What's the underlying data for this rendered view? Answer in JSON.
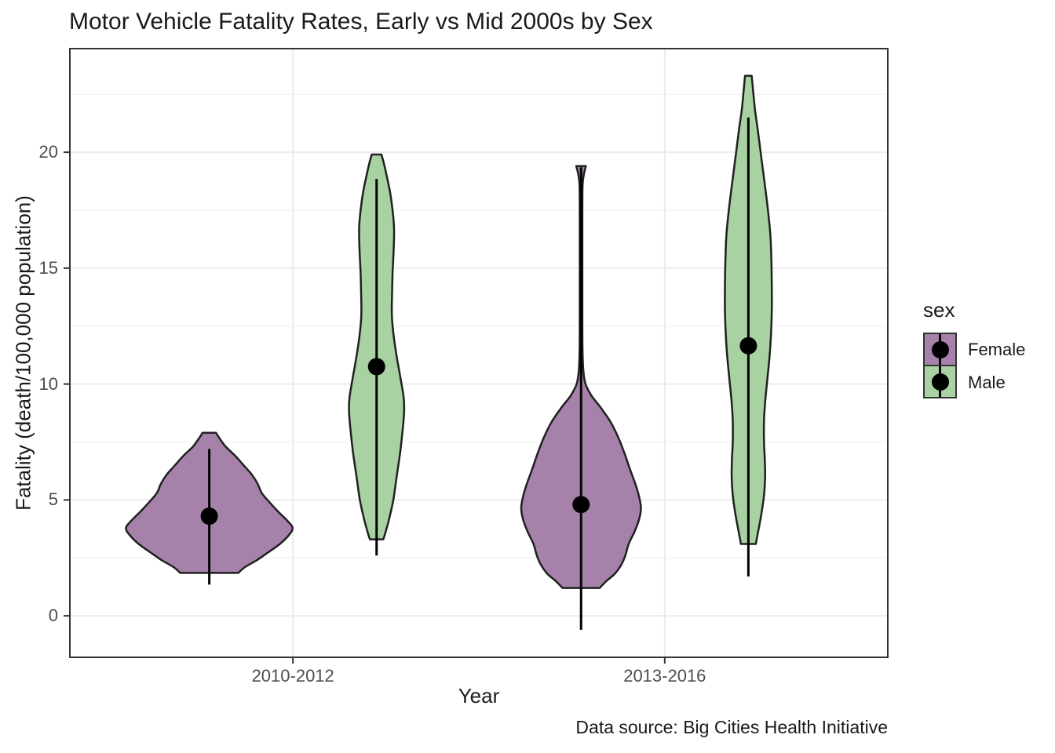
{
  "chart_data": {
    "type": "violin",
    "title": "Motor Vehicle Fatality Rates, Early vs Mid 2000s by Sex",
    "xlabel": "Year",
    "ylabel": "Fatality (death/100,000 population)",
    "caption": "Data source: Big Cities Health Initiative",
    "categories": [
      {
        "label": "2010-2012",
        "position": 1
      },
      {
        "label": "2013-2016",
        "position": 2
      }
    ],
    "y_ticks": [
      0,
      5,
      10,
      15,
      20
    ],
    "y_minor_ticks": [
      2.5,
      7.5,
      12.5,
      17.5,
      22.5
    ],
    "ylim": [
      -1.79,
      24.47
    ],
    "dodge": 0.225,
    "legend": {
      "title": "sex",
      "position": "right",
      "entries": [
        {
          "label": "Female",
          "fill": "#A682AB"
        },
        {
          "label": "Male",
          "fill": "#A9D2A2"
        }
      ]
    },
    "style": {
      "female_fill": "#A682AB",
      "male_fill": "#A9D2A2",
      "outline": "#202020",
      "point_color": "#000000",
      "range_line_color": "#000000",
      "grid_major": "#EBEBEB",
      "grid_minor": "#F0F0F0",
      "panel_border": "#333333",
      "tick_color": "#333333",
      "text_color": "#1A1A1A",
      "axis_text_color": "#4D4D4D"
    },
    "series": [
      {
        "name": "female-2010-2012",
        "sex": "Female",
        "category": "2010-2012",
        "category_position": 1,
        "side": -1,
        "fill": "#A682AB",
        "median_point": 4.3,
        "range": [
          1.35,
          7.2
        ],
        "profile": [
          [
            7.9,
            0.018
          ],
          [
            7.65,
            0.028
          ],
          [
            7.3,
            0.044
          ],
          [
            6.9,
            0.07
          ],
          [
            6.5,
            0.092
          ],
          [
            6.1,
            0.114
          ],
          [
            5.7,
            0.13
          ],
          [
            5.3,
            0.141
          ],
          [
            4.9,
            0.162
          ],
          [
            4.5,
            0.185
          ],
          [
            4.1,
            0.21
          ],
          [
            3.8,
            0.224
          ],
          [
            3.5,
            0.215
          ],
          [
            3.1,
            0.19
          ],
          [
            2.7,
            0.155
          ],
          [
            2.4,
            0.128
          ],
          [
            2.1,
            0.096
          ],
          [
            1.85,
            0.078
          ]
        ]
      },
      {
        "name": "male-2010-2012",
        "sex": "Male",
        "category": "2010-2012",
        "category_position": 1,
        "side": 1,
        "fill": "#A9D2A2",
        "median_point": 10.75,
        "range": [
          2.6,
          18.85
        ],
        "profile": [
          [
            19.9,
            0.013
          ],
          [
            19.5,
            0.02
          ],
          [
            19.0,
            0.027
          ],
          [
            18.3,
            0.036
          ],
          [
            17.5,
            0.043
          ],
          [
            16.7,
            0.047
          ],
          [
            15.8,
            0.046
          ],
          [
            14.8,
            0.043
          ],
          [
            13.8,
            0.0415
          ],
          [
            13.0,
            0.041
          ],
          [
            12.2,
            0.045
          ],
          [
            11.2,
            0.054
          ],
          [
            10.2,
            0.065
          ],
          [
            9.4,
            0.073
          ],
          [
            8.8,
            0.074
          ],
          [
            8.0,
            0.07
          ],
          [
            7.0,
            0.063
          ],
          [
            6.0,
            0.054
          ],
          [
            5.0,
            0.045
          ],
          [
            4.2,
            0.034
          ],
          [
            3.6,
            0.024
          ],
          [
            3.3,
            0.018
          ]
        ]
      },
      {
        "name": "female-2013-2016",
        "sex": "Female",
        "category": "2013-2016",
        "category_position": 2,
        "side": -1,
        "fill": "#A682AB",
        "median_point": 4.8,
        "range": [
          -0.6,
          19.35
        ],
        "profile": [
          [
            19.4,
            0.013
          ],
          [
            19.0,
            0.007
          ],
          [
            18.5,
            0.004
          ],
          [
            17.0,
            0.0035
          ],
          [
            15.0,
            0.0035
          ],
          [
            13.0,
            0.0035
          ],
          [
            11.5,
            0.004
          ],
          [
            10.6,
            0.006
          ],
          [
            10.0,
            0.012
          ],
          [
            9.5,
            0.028
          ],
          [
            9.0,
            0.052
          ],
          [
            8.4,
            0.078
          ],
          [
            7.7,
            0.1
          ],
          [
            7.0,
            0.117
          ],
          [
            6.3,
            0.132
          ],
          [
            5.6,
            0.148
          ],
          [
            5.0,
            0.158
          ],
          [
            4.6,
            0.161
          ],
          [
            4.1,
            0.155
          ],
          [
            3.6,
            0.143
          ],
          [
            3.1,
            0.128
          ],
          [
            2.6,
            0.119
          ],
          [
            2.2,
            0.108
          ],
          [
            1.8,
            0.09
          ],
          [
            1.5,
            0.068
          ],
          [
            1.2,
            0.05
          ]
        ]
      },
      {
        "name": "male-2013-2016",
        "sex": "Male",
        "category": "2013-2016",
        "category_position": 2,
        "side": 1,
        "fill": "#A9D2A2",
        "median_point": 11.65,
        "range": [
          1.7,
          21.5
        ],
        "profile": [
          [
            23.3,
            0.009
          ],
          [
            22.6,
            0.013
          ],
          [
            21.8,
            0.018
          ],
          [
            21.0,
            0.025
          ],
          [
            20.0,
            0.033
          ],
          [
            19.0,
            0.041
          ],
          [
            18.0,
            0.049
          ],
          [
            17.0,
            0.056
          ],
          [
            16.2,
            0.06
          ],
          [
            15.2,
            0.062
          ],
          [
            14.2,
            0.063
          ],
          [
            13.2,
            0.063
          ],
          [
            12.2,
            0.061
          ],
          [
            11.2,
            0.057
          ],
          [
            10.2,
            0.051
          ],
          [
            9.2,
            0.045
          ],
          [
            8.4,
            0.042
          ],
          [
            7.5,
            0.042
          ],
          [
            6.8,
            0.044
          ],
          [
            6.0,
            0.045
          ],
          [
            5.2,
            0.042
          ],
          [
            4.4,
            0.035
          ],
          [
            3.7,
            0.027
          ],
          [
            3.1,
            0.02
          ]
        ]
      }
    ]
  }
}
